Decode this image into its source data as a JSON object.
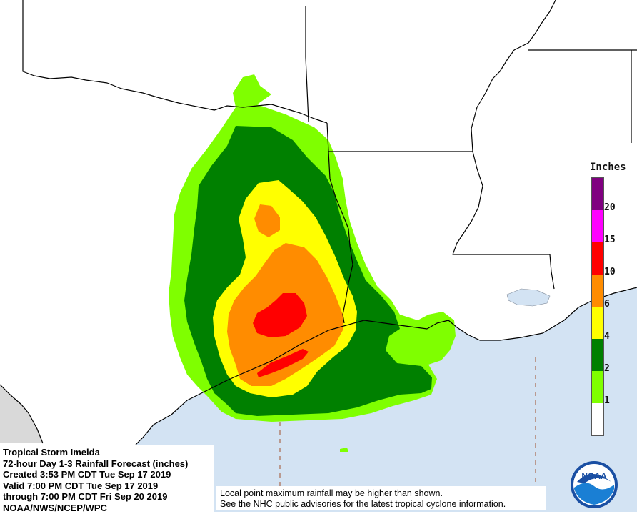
{
  "legend": {
    "title": "Inches",
    "bins": [
      {
        "label": "1",
        "color": "#7fff00"
      },
      {
        "label": "2",
        "color": "#008000"
      },
      {
        "label": "4",
        "color": "#ffff00"
      },
      {
        "label": "6",
        "color": "#ff8c00"
      },
      {
        "label": "10",
        "color": "#ff0000"
      },
      {
        "label": "15",
        "color": "#ff00ff"
      },
      {
        "label": "20",
        "color": "#800080"
      }
    ],
    "base_color": "#ffffff"
  },
  "info": {
    "storm": "Tropical Storm Imelda",
    "product": "72-hour Day 1-3 Rainfall Forecast (inches)",
    "created": "Created 3:53 PM CDT Tue Sep 17 2019",
    "valid": "Valid 7:00 PM CDT Tue Sep 17 2019",
    "through": "through 7:00 PM CDT Fri Sep 20 2019",
    "agency": "NOAA/NWS/NCEP/WPC"
  },
  "disclaimer": {
    "line1": "Local point maximum rainfall may be higher than shown.",
    "line2": "See the NHC public advisories for the latest tropical cyclone information."
  },
  "logo": {
    "text": "NOAA"
  },
  "colors": {
    "water": "#d3e3f3",
    "land": "#ffffff",
    "mexico": "#d9d9d9",
    "boundary": "#000000"
  }
}
